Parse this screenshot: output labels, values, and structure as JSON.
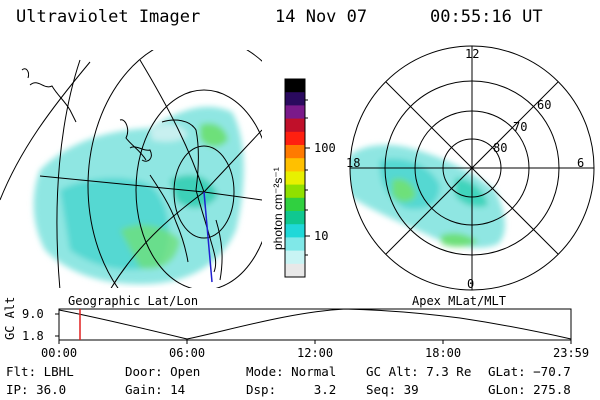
{
  "header": {
    "title": "Ultraviolet Imager",
    "date": "14 Nov 07",
    "time": "00:55:16 UT"
  },
  "colorbar": {
    "unit_label": "photon cm⁻²s⁻¹",
    "ticks": [
      "100",
      "10"
    ],
    "colors": [
      "#000000",
      "#2a0a5e",
      "#7a1a8a",
      "#c0102a",
      "#ff2010",
      "#ff7a00",
      "#ffc000",
      "#e8f000",
      "#90e000",
      "#30d040",
      "#10c890",
      "#20d8d8",
      "#80e8e8",
      "#c8f4f4",
      "#e8e8e8"
    ]
  },
  "left_map": {
    "label": "Geographic Lat/Lon"
  },
  "right_map": {
    "label": "Apex MLat/MLT",
    "mlt_labels": {
      "top": "12",
      "left": "18",
      "right": "6",
      "bottom": "0"
    },
    "lat_labels": [
      "60",
      "70",
      "80"
    ]
  },
  "timeline": {
    "axis_label": "GC Alt",
    "y_ticks": [
      "9.0",
      "1.8"
    ],
    "x_ticks": [
      "00:00",
      "06:00",
      "12:00",
      "18:00",
      "23:59"
    ],
    "current_marker_color": "#e02020"
  },
  "footer": {
    "flt": "Flt: LBHL",
    "ip": "IP: 36.0",
    "door": "Door: Open",
    "gain": "Gain: 14",
    "mode": "Mode: Normal",
    "dsp": "Dsp:     3.2",
    "gcalt": "GC Alt: 7.3 Re",
    "seq": "Seq: 39",
    "glat": "GLat: −70.7",
    "glon": "GLon: 275.8"
  }
}
